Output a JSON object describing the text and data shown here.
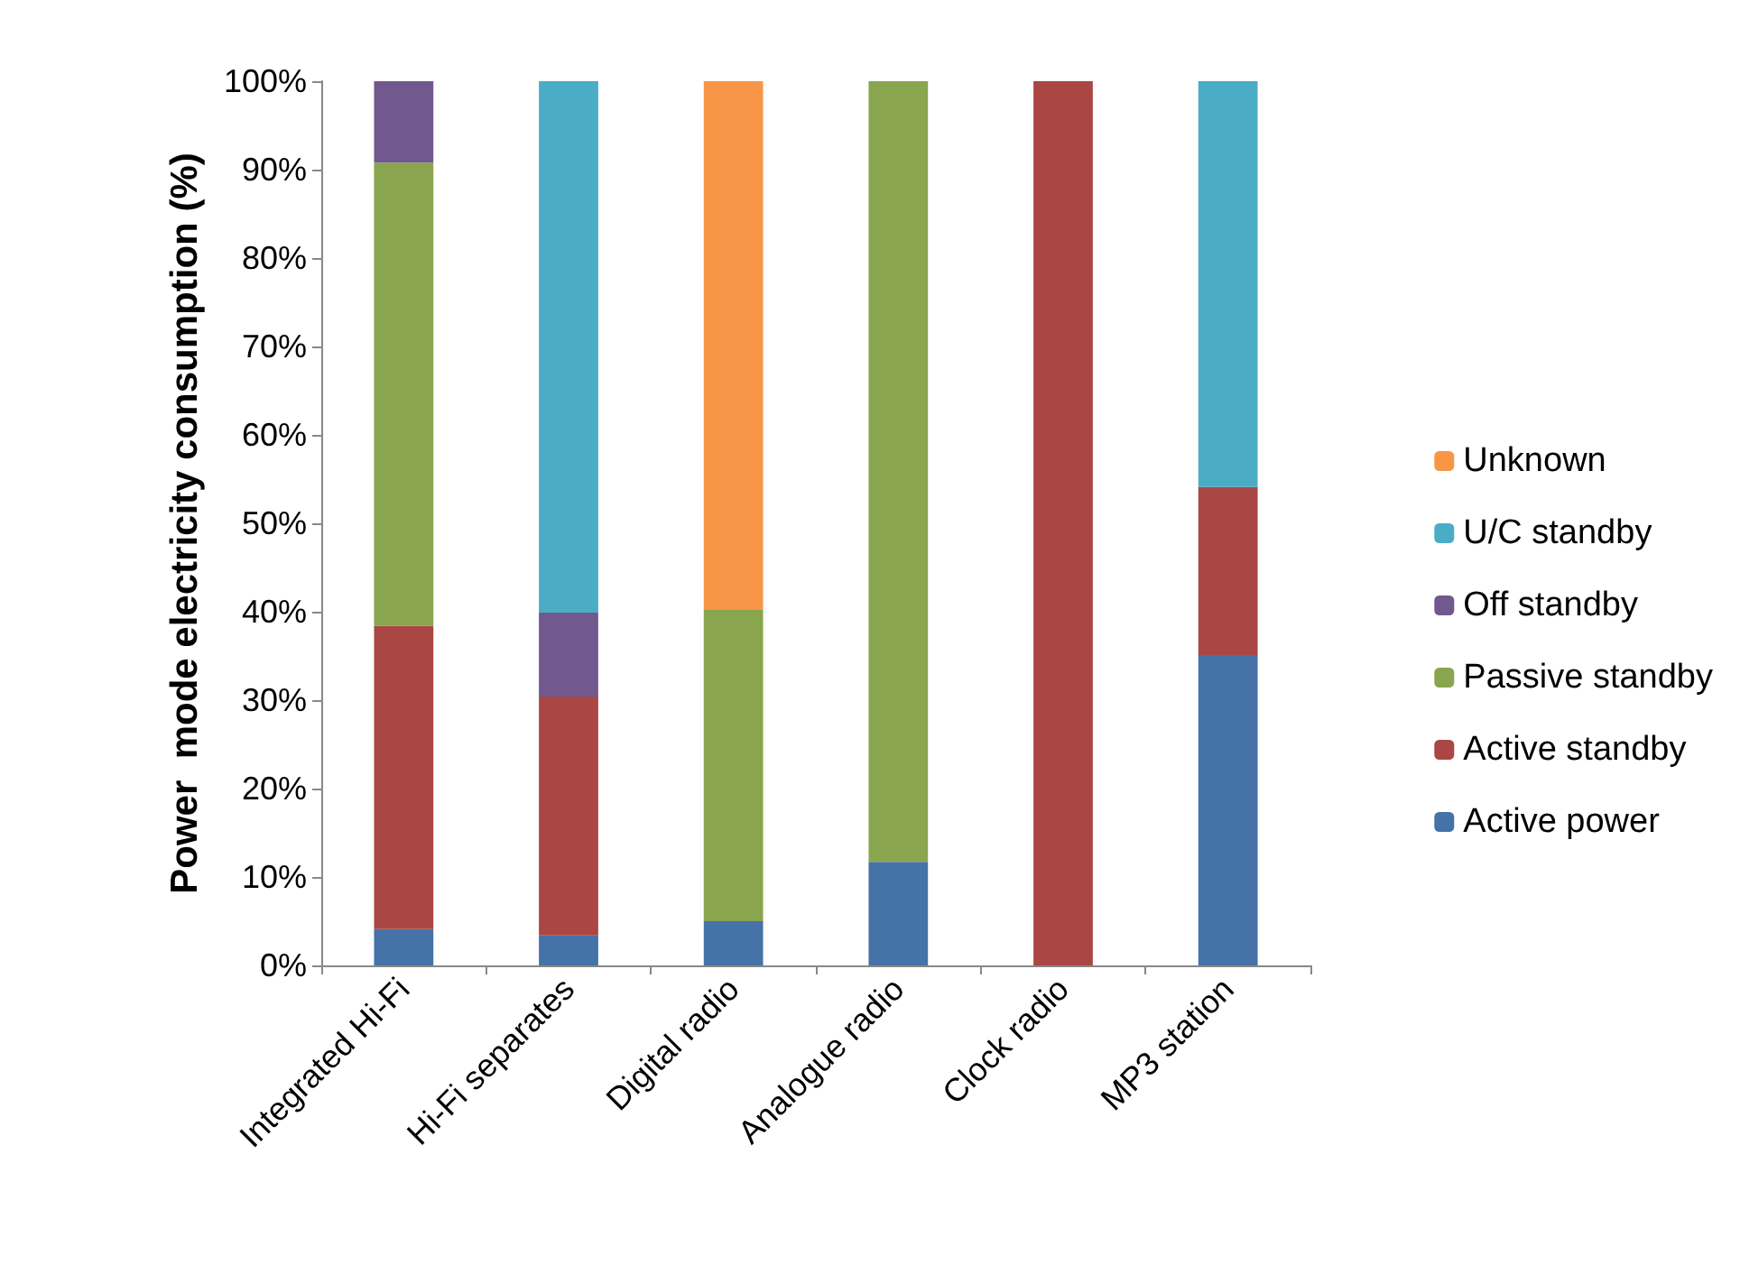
{
  "chart_data": {
    "type": "bar",
    "stacked": true,
    "ylabel": "Power  mode electricity consumption (%)",
    "categories": [
      "Integrated Hi-Fi",
      "Hi-Fi separates",
      "Digital radio",
      "Analogue radio",
      "Clock radio",
      "MP3 station"
    ],
    "series": [
      {
        "name": "Active power",
        "color": "#4572a7",
        "values": [
          4.1,
          3.4,
          5.0,
          11.7,
          0,
          35.1
        ]
      },
      {
        "name": "Active standby",
        "color": "#aa4643",
        "values": [
          34.3,
          27.0,
          0,
          0,
          100,
          19.0
        ]
      },
      {
        "name": "Passive standby",
        "color": "#89a54e",
        "values": [
          52.4,
          0,
          35.2,
          88.3,
          0,
          0
        ]
      },
      {
        "name": "Off standby",
        "color": "#71588f",
        "values": [
          9.2,
          9.5,
          0,
          0,
          0,
          0
        ]
      },
      {
        "name": "U/C standby",
        "color": "#4bacc6",
        "values": [
          0,
          60.1,
          0,
          0,
          0,
          45.9
        ]
      },
      {
        "name": "Unknown",
        "color": "#f79646",
        "values": [
          0,
          0,
          59.8,
          0,
          0,
          0
        ]
      }
    ],
    "ylim": [
      0,
      100
    ],
    "yticks": [
      {
        "value": 0,
        "label": "0%"
      },
      {
        "value": 10,
        "label": "10%"
      },
      {
        "value": 20,
        "label": "20%"
      },
      {
        "value": 30,
        "label": "30%"
      },
      {
        "value": 40,
        "label": "40%"
      },
      {
        "value": 50,
        "label": "50%"
      },
      {
        "value": 60,
        "label": "60%"
      },
      {
        "value": 70,
        "label": "70%"
      },
      {
        "value": 80,
        "label": "80%"
      },
      {
        "value": 90,
        "label": "90%"
      },
      {
        "value": 100,
        "label": "100%"
      }
    ],
    "grid": false,
    "legend": "right"
  }
}
